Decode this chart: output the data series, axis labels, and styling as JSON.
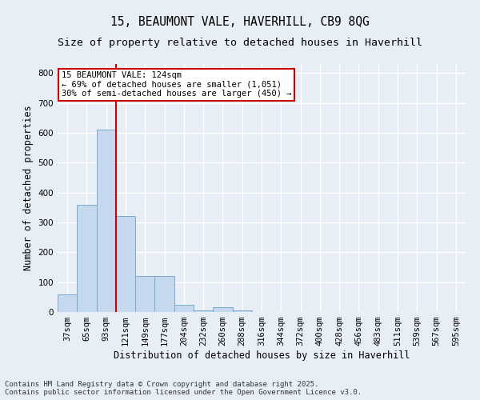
{
  "title_line1": "15, BEAUMONT VALE, HAVERHILL, CB9 8QG",
  "title_line2": "Size of property relative to detached houses in Haverhill",
  "xlabel": "Distribution of detached houses by size in Haverhill",
  "ylabel": "Number of detached properties",
  "categories": [
    "37sqm",
    "65sqm",
    "93sqm",
    "121sqm",
    "149sqm",
    "177sqm",
    "204sqm",
    "232sqm",
    "260sqm",
    "288sqm",
    "316sqm",
    "344sqm",
    "372sqm",
    "400sqm",
    "428sqm",
    "456sqm",
    "483sqm",
    "511sqm",
    "539sqm",
    "567sqm",
    "595sqm"
  ],
  "values": [
    60,
    360,
    610,
    320,
    120,
    120,
    25,
    5,
    15,
    5,
    0,
    0,
    0,
    0,
    0,
    0,
    0,
    0,
    0,
    0,
    0
  ],
  "bar_color": "#c5d8ed",
  "bar_edge_color": "#7aacce",
  "vline_color": "#cc0000",
  "vline_x": 2.5,
  "ylim": [
    0,
    830
  ],
  "yticks": [
    0,
    100,
    200,
    300,
    400,
    500,
    600,
    700,
    800
  ],
  "annotation_box_text": "15 BEAUMONT VALE: 124sqm\n← 69% of detached houses are smaller (1,051)\n30% of semi-detached houses are larger (450) →",
  "annotation_box_color": "#cc0000",
  "annotation_box_facecolor": "#ffffff",
  "footer_line1": "Contains HM Land Registry data © Crown copyright and database right 2025.",
  "footer_line2": "Contains public sector information licensed under the Open Government Licence v3.0.",
  "background_color": "#e8eef5",
  "plot_background_color": "#e8eef5",
  "grid_color": "#ffffff",
  "title_fontsize": 10.5,
  "subtitle_fontsize": 9.5,
  "label_fontsize": 8.5,
  "tick_fontsize": 7.5,
  "footer_fontsize": 6.5,
  "ann_fontsize": 7.5
}
